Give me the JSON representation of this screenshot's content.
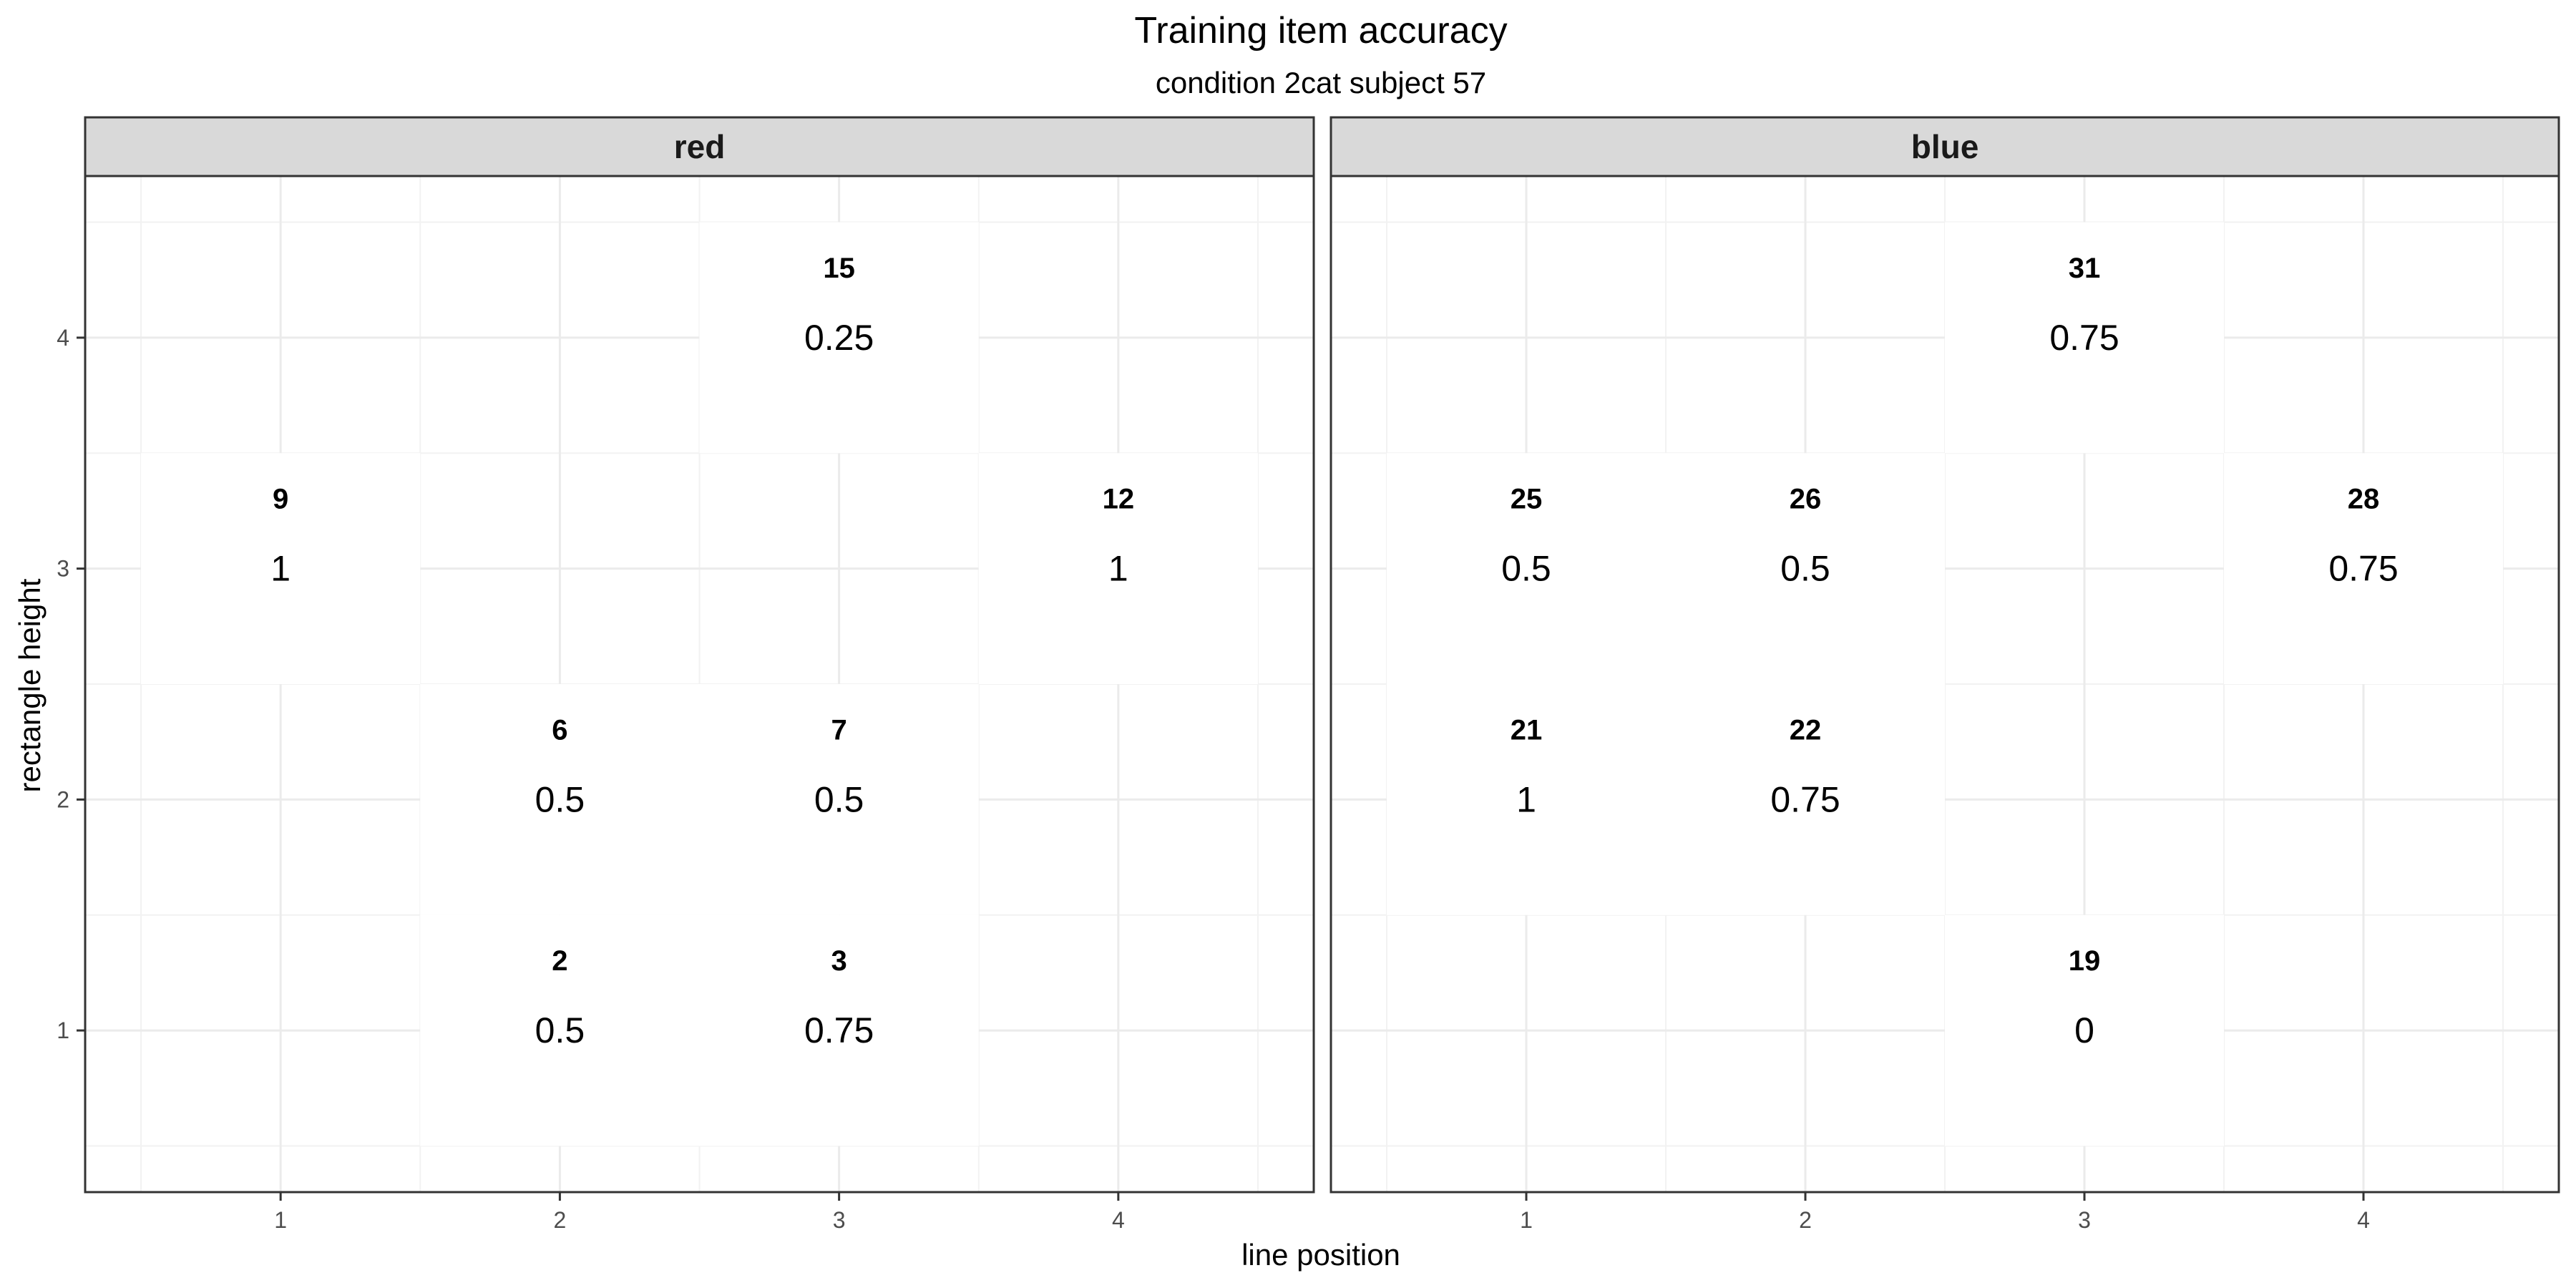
{
  "chart_data": {
    "type": "heatmap",
    "title": "Training item accuracy",
    "subtitle": "condition 2cat  subject 57",
    "xlabel": "line position",
    "ylabel": "rectangle height",
    "x_ticks": [
      1,
      2,
      3,
      4
    ],
    "y_ticks": [
      1,
      2,
      3,
      4
    ],
    "xlim": [
      0.3,
      4.7
    ],
    "ylim": [
      0.3,
      4.7
    ],
    "grid": true,
    "fill_color": "#ffffff",
    "facets": [
      {
        "label": "red",
        "cells": [
          {
            "x": 3,
            "y": 4,
            "id": "15",
            "accuracy": "0.25"
          },
          {
            "x": 1,
            "y": 3,
            "id": "9",
            "accuracy": "1"
          },
          {
            "x": 4,
            "y": 3,
            "id": "12",
            "accuracy": "1"
          },
          {
            "x": 2,
            "y": 2,
            "id": "6",
            "accuracy": "0.5"
          },
          {
            "x": 3,
            "y": 2,
            "id": "7",
            "accuracy": "0.5"
          },
          {
            "x": 2,
            "y": 1,
            "id": "2",
            "accuracy": "0.5"
          },
          {
            "x": 3,
            "y": 1,
            "id": "3",
            "accuracy": "0.75"
          }
        ]
      },
      {
        "label": "blue",
        "cells": [
          {
            "x": 3,
            "y": 4,
            "id": "31",
            "accuracy": "0.75"
          },
          {
            "x": 1,
            "y": 3,
            "id": "25",
            "accuracy": "0.5"
          },
          {
            "x": 2,
            "y": 3,
            "id": "26",
            "accuracy": "0.5"
          },
          {
            "x": 4,
            "y": 3,
            "id": "28",
            "accuracy": "0.75"
          },
          {
            "x": 1,
            "y": 2,
            "id": "21",
            "accuracy": "1"
          },
          {
            "x": 2,
            "y": 2,
            "id": "22",
            "accuracy": "0.75"
          },
          {
            "x": 3,
            "y": 1,
            "id": "19",
            "accuracy": "0"
          }
        ]
      }
    ]
  }
}
